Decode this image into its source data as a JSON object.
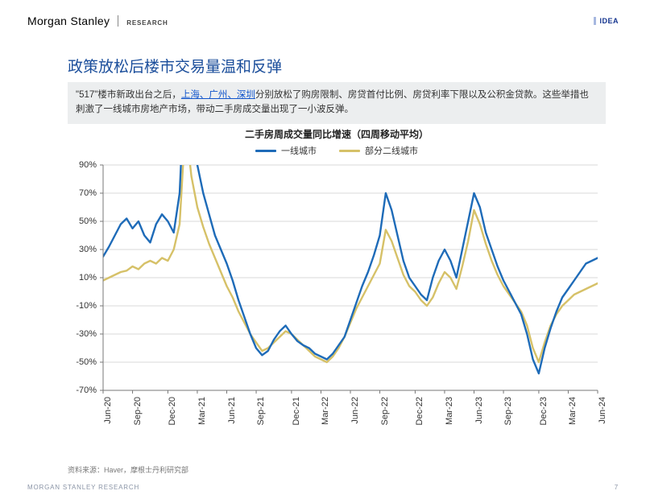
{
  "header": {
    "brand": "Morgan Stanley",
    "sub": "RESEARCH",
    "badge": "IDEA"
  },
  "title": "政策放松后楼市交易量温和反弹",
  "desc": {
    "lead": "\"517\"楼市新政出台之后，",
    "link": "上海、广州、深圳",
    "tail": "分别放松了购房限制、房贷首付比例、房贷利率下限以及公积金贷款。这些举措也刺激了一线城市房地产市场，带动二手房成交量出现了一小波反弹。"
  },
  "chart": {
    "title": "二手房周成交量同比增速（四周移动平均）",
    "legend": [
      {
        "label": "一线城市",
        "color": "#1e6bb8"
      },
      {
        "label": "部分二线城市",
        "color": "#d6c168"
      }
    ],
    "y": {
      "min": -70,
      "max": 90,
      "step": 20,
      "ticks": [
        90,
        70,
        50,
        30,
        10,
        -10,
        -30,
        -50,
        -70
      ],
      "format_suffix": "%"
    },
    "x": {
      "labels": [
        "Jun-20",
        "Sep-20",
        "Dec-20",
        "Mar-21",
        "Jun-21",
        "Sep-21",
        "Dec-21",
        "Mar-22",
        "Jun-22",
        "Sep-22",
        "Dec-22",
        "Mar-23",
        "Jun-23",
        "Sep-23",
        "Dec-23",
        "Mar-24",
        "Jun-24"
      ]
    },
    "series": {
      "tier1": {
        "color": "#1e6bb8",
        "width": 2.4,
        "points": [
          25,
          32,
          40,
          48,
          52,
          45,
          50,
          40,
          35,
          48,
          55,
          50,
          42,
          70,
          160,
          110,
          90,
          70,
          55,
          40,
          30,
          20,
          8,
          -6,
          -18,
          -30,
          -40,
          -45,
          -42,
          -34,
          -28,
          -24,
          -30,
          -35,
          -38,
          -40,
          -44,
          -46,
          -48,
          -44,
          -38,
          -32,
          -20,
          -8,
          4,
          14,
          26,
          40,
          70,
          58,
          40,
          22,
          10,
          4,
          -2,
          -6,
          10,
          22,
          30,
          22,
          10,
          30,
          50,
          70,
          60,
          42,
          30,
          18,
          8,
          0,
          -8,
          -16,
          -30,
          -48,
          -58,
          -40,
          -26,
          -14,
          -4,
          2,
          8,
          14,
          20,
          22,
          24
        ]
      },
      "tier2": {
        "color": "#d6c168",
        "width": 2.4,
        "points": [
          8,
          10,
          12,
          14,
          15,
          18,
          16,
          20,
          22,
          20,
          24,
          22,
          30,
          48,
          120,
          82,
          60,
          46,
          34,
          24,
          14,
          4,
          -4,
          -14,
          -22,
          -30,
          -36,
          -42,
          -40,
          -36,
          -32,
          -28,
          -30,
          -34,
          -38,
          -42,
          -46,
          -48,
          -50,
          -46,
          -40,
          -32,
          -22,
          -12,
          -4,
          4,
          12,
          20,
          44,
          36,
          24,
          12,
          4,
          0,
          -6,
          -10,
          -4,
          6,
          14,
          10,
          2,
          18,
          36,
          58,
          48,
          34,
          22,
          12,
          4,
          -2,
          -8,
          -14,
          -24,
          -40,
          -50,
          -36,
          -24,
          -16,
          -10,
          -6,
          -2,
          0,
          2,
          4,
          6
        ]
      }
    },
    "n_points": 85,
    "grid_color": "#d9d9d9",
    "background": "#ffffff",
    "clip_top_index_range": [
      13,
      16
    ]
  },
  "source": "资料来源：Haver，摩根士丹利研究部",
  "footer": {
    "left": "MORGAN STANLEY RESEARCH",
    "page": "7"
  }
}
